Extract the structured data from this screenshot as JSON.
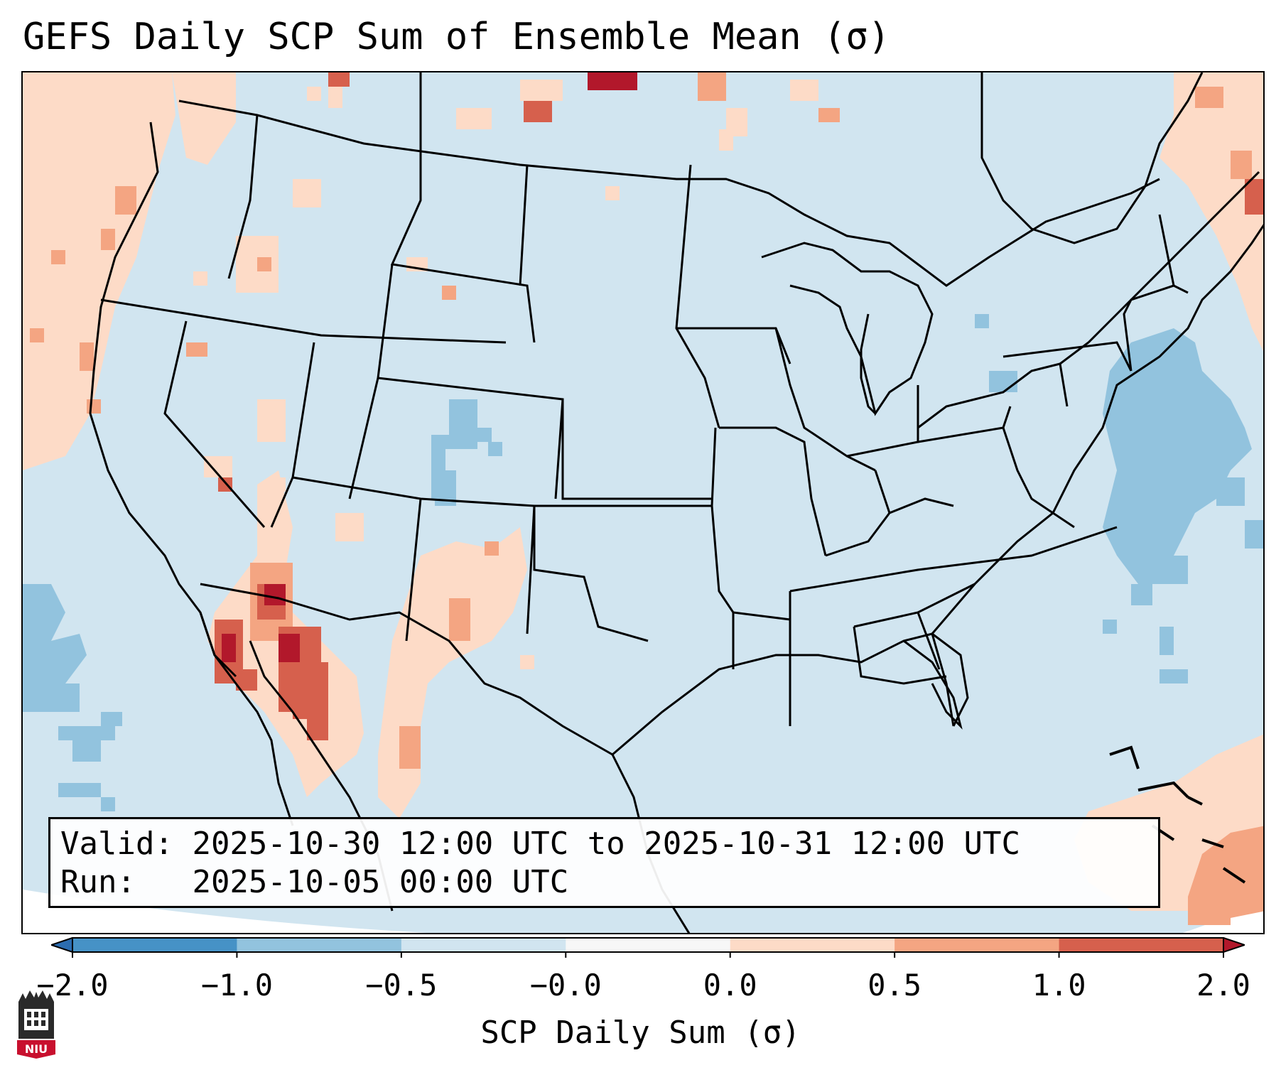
{
  "title": "GEFS Daily SCP Sum of Ensemble Mean (σ)",
  "info": {
    "valid_label": "Valid:",
    "valid_value": "2025-10-30 12:00 UTC to 2025-10-31 12:00 UTC",
    "run_label": "Run:",
    "run_value": "2025-10-05 00:00 UTC"
  },
  "colorbar": {
    "label": "SCP Daily Sum (σ)",
    "ticks": [
      "−2.0",
      "−1.0",
      "−0.5",
      "−0.0",
      "0.0",
      "0.5",
      "1.0",
      "2.0"
    ],
    "bins": [
      {
        "range": "<-2.0",
        "color": "#2c6db0"
      },
      {
        "range": "-2.0 to -1.0",
        "color": "#4692c6"
      },
      {
        "range": "-1.0 to -0.5",
        "color": "#92c3de"
      },
      {
        "range": "-0.5 to -0.0",
        "color": "#d1e5f0"
      },
      {
        "range": "-0.0 to 0.0",
        "color": "#f7f7f7"
      },
      {
        "range": "0.0 to 0.5",
        "color": "#fddbc7"
      },
      {
        "range": "0.5 to 1.0",
        "color": "#f4a582"
      },
      {
        "range": "1.0 to 2.0",
        "color": "#d6604d"
      },
      {
        "range": ">2.0",
        "color": "#b2182b"
      }
    ]
  },
  "map": {
    "background_color": "#d1e5f0",
    "anomaly_regions": [
      {
        "name": "pacific-northwest-coast",
        "level": "0.0 to 0.5"
      },
      {
        "name": "desert-southwest",
        "level": "1.0 to 2.0"
      },
      {
        "name": "gulf-of-california",
        "level": ">2.0"
      },
      {
        "name": "southern-new-mexico-chihuahua",
        "level": "0.0 to 0.5"
      },
      {
        "name": "atlantic-off-northeast",
        "level": "-1.0 to -0.5"
      },
      {
        "name": "eastern-pacific",
        "level": "-1.0 to -0.5"
      },
      {
        "name": "southern-colorado",
        "level": "-1.0 to -0.5"
      },
      {
        "name": "western-atlantic-caribbean",
        "level": "0.5 to 1.0"
      },
      {
        "name": "montana-canada-border",
        "level": ">2.0"
      }
    ]
  },
  "logo": {
    "text": "NIU"
  }
}
